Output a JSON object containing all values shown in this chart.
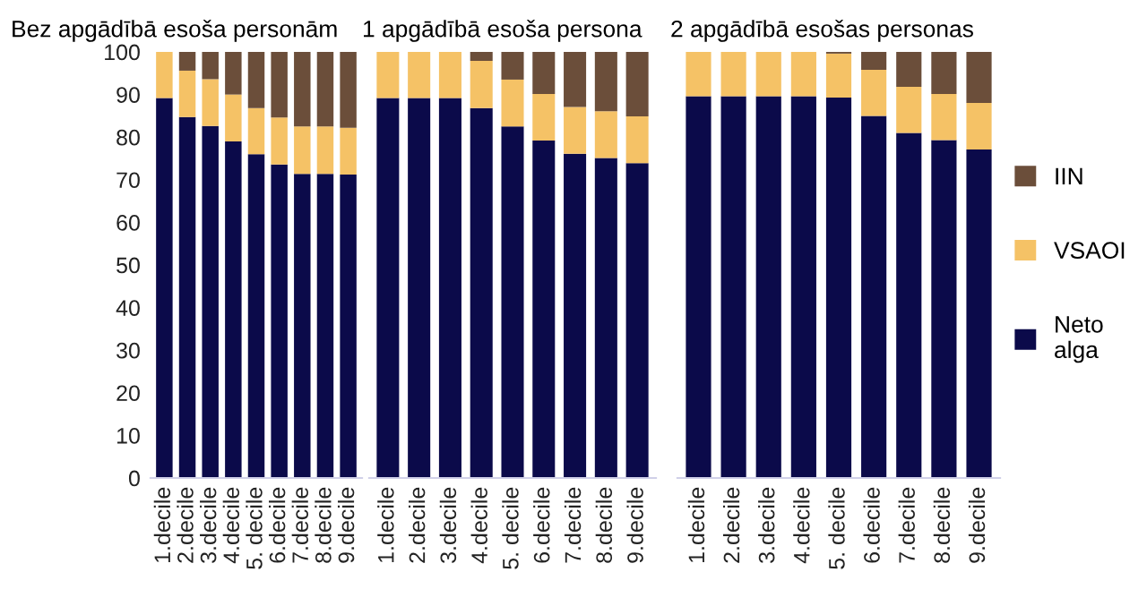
{
  "chart_data": [
    {
      "type": "bar",
      "stacked": true,
      "title": "Bez apgādībā esoša personām",
      "categories": [
        "1.decile",
        "2.decile",
        "3.decile",
        "4.decile",
        "5. decile",
        "6.decile",
        "7.decile",
        "8.decile",
        "9.decile"
      ],
      "series": [
        {
          "color": "#0b0a4a",
          "values": [
            89.2,
            84.7,
            82.6,
            79.0,
            76.0,
            73.6,
            71.4,
            71.4,
            71.2
          ]
        },
        {
          "color": "#f5c266",
          "values": [
            10.8,
            10.9,
            11.0,
            11.0,
            10.8,
            11.0,
            11.1,
            11.1,
            11.0
          ]
        },
        {
          "color": "#6b4e3a",
          "values": [
            0,
            4.4,
            6.4,
            10.0,
            13.2,
            15.4,
            17.5,
            17.5,
            17.8
          ]
        }
      ],
      "ylim": [
        0,
        100
      ],
      "yticks": [
        0,
        10,
        20,
        30,
        40,
        50,
        60,
        70,
        80,
        90,
        100
      ]
    },
    {
      "type": "bar",
      "stacked": true,
      "title": "1 apgādībā esoša persona",
      "categories": [
        "1.decile",
        "2.decile",
        "3.decile",
        "4.decile",
        "5. decile",
        "6.decile",
        "7.decile",
        "8.decile",
        "9.decile"
      ],
      "series": [
        {
          "color": "#0b0a4a",
          "values": [
            89.2,
            89.2,
            89.2,
            86.8,
            82.5,
            79.2,
            76.1,
            75.1,
            73.9
          ]
        },
        {
          "color": "#f5c266",
          "values": [
            10.8,
            10.8,
            10.8,
            11.1,
            11.0,
            10.9,
            11.0,
            11.0,
            11.0
          ]
        },
        {
          "color": "#6b4e3a",
          "values": [
            0,
            0,
            0,
            2.1,
            6.5,
            9.9,
            12.9,
            13.9,
            15.1
          ]
        }
      ],
      "ylim": [
        0,
        100
      ],
      "yticks": [
        0,
        10,
        20,
        30,
        40,
        50,
        60,
        70,
        80,
        90,
        100
      ],
      "tick_labels": "x"
    },
    {
      "type": "bar",
      "stacked": true,
      "title": "2 apgādībā esošas personas",
      "categories": [
        "1.decile",
        "2.decile",
        "3.decile",
        "4.decile",
        "5. decile",
        "6.decile",
        "7.decile",
        "8.decile",
        "9.decile"
      ],
      "series": [
        {
          "name": "Neto\nalga",
          "color": "#0b0a4a",
          "values": [
            89.6,
            89.6,
            89.6,
            89.6,
            89.3,
            85.0,
            81.0,
            79.3,
            77.1
          ]
        },
        {
          "name": "VSAOI",
          "color": "#f5c266",
          "values": [
            10.4,
            10.4,
            10.4,
            10.4,
            10.3,
            10.8,
            10.8,
            10.8,
            10.9
          ]
        },
        {
          "name": "IIN",
          "color": "#6b4e3a",
          "values": [
            0,
            0,
            0,
            0,
            0.4,
            4.2,
            8.2,
            9.9,
            12.0
          ]
        }
      ],
      "ylim": [
        0,
        100
      ],
      "yticks": [
        0,
        10,
        20,
        30,
        40,
        50,
        60,
        70,
        80,
        90,
        100
      ],
      "tick_labels": "x",
      "legend": "right"
    }
  ]
}
